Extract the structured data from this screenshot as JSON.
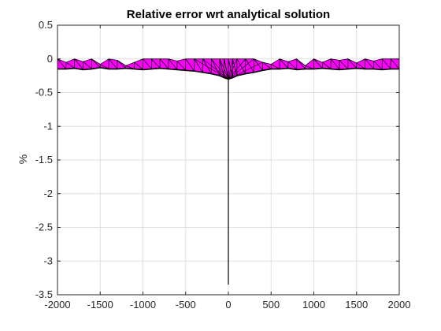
{
  "chart_data": {
    "type": "area",
    "title": "Relative error wrt analytical solution",
    "xlabel": "",
    "ylabel": "%",
    "xlim": [
      -2000,
      2000
    ],
    "ylim": [
      -3.5,
      0.5
    ],
    "xticks": [
      -2000,
      -1500,
      -1000,
      -500,
      0,
      500,
      1000,
      1500,
      2000
    ],
    "yticks": [
      0.5,
      0,
      -0.5,
      -1,
      -1.5,
      -2,
      -2.5,
      -3,
      -3.5
    ],
    "xtick_labels": [
      "-2000",
      "-1500",
      "-1000",
      "-500",
      "0",
      "500",
      "1000",
      "1500",
      "2000"
    ],
    "ytick_labels": [
      "0.5",
      "0",
      "-0.5",
      "-1",
      "-1.5",
      "-2",
      "-2.5",
      "-3",
      "-3.5"
    ],
    "grid": true,
    "surface_color": "#ff00ff",
    "edge_color": "#000000",
    "band": {
      "x": [
        -2000,
        -1900,
        -1800,
        -1700,
        -1600,
        -1500,
        -1400,
        -1300,
        -1200,
        -1100,
        -1000,
        -900,
        -800,
        -700,
        -600,
        -500,
        -400,
        -300,
        -200,
        -100,
        -50,
        0,
        50,
        100,
        200,
        300,
        400,
        500,
        600,
        700,
        800,
        900,
        1000,
        1100,
        1200,
        1300,
        1400,
        1500,
        1600,
        1700,
        1800,
        1900,
        2000
      ],
      "upper": [
        0.0,
        -0.05,
        0.0,
        -0.04,
        0.0,
        -0.08,
        0.0,
        -0.02,
        -0.1,
        -0.05,
        0.0,
        0.0,
        0.0,
        0.0,
        -0.03,
        0.0,
        0.0,
        0.0,
        0.0,
        0.0,
        0.0,
        0.0,
        0.0,
        0.0,
        0.0,
        0.0,
        -0.05,
        -0.08,
        0.0,
        -0.04,
        0.0,
        -0.1,
        0.0,
        -0.05,
        0.0,
        -0.02,
        0.0,
        -0.06,
        0.0,
        -0.03,
        0.0,
        0.0,
        0.0
      ],
      "lower": [
        -0.15,
        -0.15,
        -0.14,
        -0.16,
        -0.15,
        -0.13,
        -0.15,
        -0.15,
        -0.14,
        -0.15,
        -0.16,
        -0.15,
        -0.14,
        -0.15,
        -0.16,
        -0.17,
        -0.18,
        -0.2,
        -0.22,
        -0.25,
        -0.28,
        -0.3,
        -0.28,
        -0.25,
        -0.22,
        -0.2,
        -0.17,
        -0.15,
        -0.15,
        -0.14,
        -0.16,
        -0.15,
        -0.15,
        -0.14,
        -0.15,
        -0.16,
        -0.15,
        -0.14,
        -0.15,
        -0.15,
        -0.16,
        -0.15,
        -0.15
      ]
    },
    "spike": {
      "x": 0,
      "y": [
        -0.3,
        -3.35
      ]
    }
  }
}
